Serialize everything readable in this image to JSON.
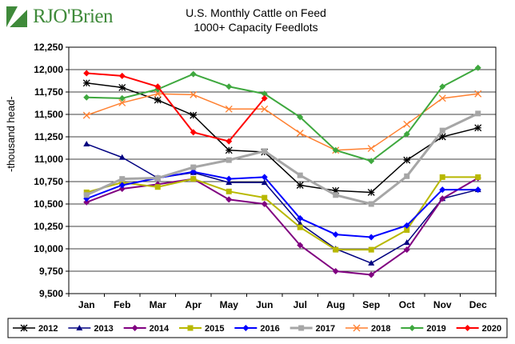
{
  "brand": {
    "name": "RJO'Brien"
  },
  "chart_data": {
    "type": "line",
    "title": "U.S. Monthly Cattle on Feed",
    "subtitle": "1000+ Capacity Feedlots",
    "ylabel": "-thousand head-",
    "xlabel": "",
    "ylim": [
      9500,
      12250
    ],
    "yticks": [
      9500,
      9750,
      10000,
      10250,
      10500,
      10750,
      11000,
      11250,
      11500,
      11750,
      12000,
      12250
    ],
    "ytick_labels": [
      "9,500",
      "9,750",
      "10,000",
      "10,250",
      "10,500",
      "10,750",
      "11,000",
      "11,250",
      "11,500",
      "11,750",
      "12,000",
      "12,250"
    ],
    "categories": [
      "Jan",
      "Feb",
      "Mar",
      "Apr",
      "May",
      "Jun",
      "Jul",
      "Aug",
      "Sep",
      "Oct",
      "Nov",
      "Dec"
    ],
    "grid": true,
    "legend_position": "bottom",
    "series": [
      {
        "name": "2012",
        "color": "#000000",
        "marker": "asterisk",
        "width": 1.5,
        "values": [
          11850,
          11800,
          11660,
          11490,
          11100,
          11080,
          10710,
          10650,
          10630,
          10990,
          11250,
          11350
        ]
      },
      {
        "name": "2013",
        "color": "#000080",
        "marker": "triangle",
        "width": 1.5,
        "values": [
          11170,
          11020,
          10790,
          10850,
          10740,
          10740,
          10280,
          10000,
          9840,
          10070,
          10560,
          10660
        ]
      },
      {
        "name": "2014",
        "color": "#800080",
        "marker": "diamond",
        "width": 2,
        "values": [
          10520,
          10670,
          10720,
          10780,
          10550,
          10500,
          10040,
          9750,
          9710,
          9990,
          10560,
          10790
        ]
      },
      {
        "name": "2015",
        "color": "#b8b800",
        "marker": "square",
        "width": 2,
        "values": [
          10630,
          10740,
          10690,
          10780,
          10640,
          10570,
          10240,
          9990,
          9990,
          10210,
          10800,
          10800
        ]
      },
      {
        "name": "2016",
        "color": "#0000ff",
        "marker": "diamond",
        "width": 2,
        "values": [
          10560,
          10710,
          10790,
          10860,
          10780,
          10800,
          10340,
          10160,
          10130,
          10260,
          10660,
          10660
        ]
      },
      {
        "name": "2017",
        "color": "#a6a6a6",
        "marker": "square",
        "width": 3,
        "values": [
          10600,
          10780,
          10790,
          10910,
          10990,
          11090,
          10820,
          10600,
          10500,
          10810,
          11320,
          11510
        ]
      },
      {
        "name": "2018",
        "color": "#ff8030",
        "marker": "cross",
        "width": 1.5,
        "values": [
          11490,
          11630,
          11730,
          11720,
          11560,
          11560,
          11290,
          11100,
          11120,
          11390,
          11680,
          11730
        ]
      },
      {
        "name": "2019",
        "color": "#3ea83e",
        "marker": "diamond",
        "width": 2,
        "values": [
          11690,
          11680,
          11780,
          11950,
          11810,
          11730,
          11470,
          11100,
          10980,
          11280,
          11810,
          12020
        ]
      },
      {
        "name": "2020",
        "color": "#ff0000",
        "marker": "diamond",
        "width": 2,
        "values": [
          11960,
          11930,
          11810,
          11300,
          11200,
          11680,
          null,
          null,
          null,
          null,
          null,
          null
        ]
      }
    ]
  }
}
